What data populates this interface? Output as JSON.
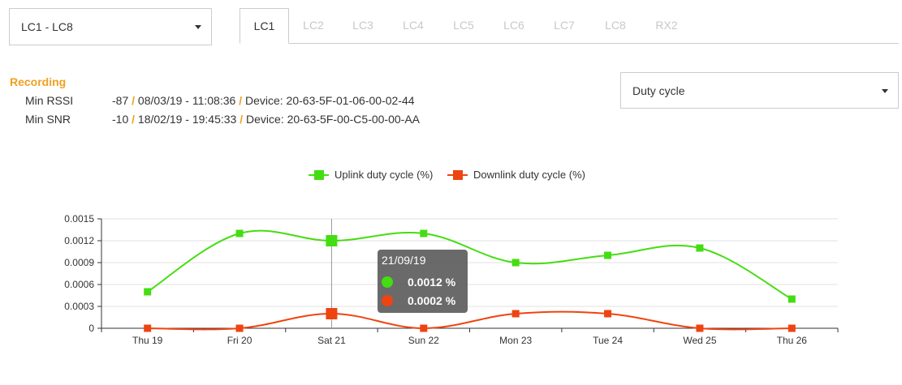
{
  "range_select": {
    "value": "LC1 - LC8"
  },
  "tabs": [
    "LC1",
    "LC2",
    "LC3",
    "LC4",
    "LC5",
    "LC6",
    "LC7",
    "LC8",
    "RX2"
  ],
  "active_tab": "LC1",
  "recording": {
    "title": "Recording",
    "min_rssi": {
      "label": "Min RSSI",
      "value": "-87",
      "datetime": "08/03/19 - 11:08:36",
      "device": "Device: 20-63-5F-01-06-00-02-44"
    },
    "min_snr": {
      "label": "Min SNR",
      "value": "-10",
      "datetime": "18/02/19 - 19:45:33",
      "device": "Device: 20-63-5F-00-C5-00-00-AA"
    },
    "separator": "/"
  },
  "metric_select": {
    "value": "Duty cycle"
  },
  "colors": {
    "uplink": "#44dd11",
    "downlink": "#ee4411",
    "accent": "#f0a020"
  },
  "chart_data": {
    "type": "line",
    "categories": [
      "Thu 19",
      "Fri 20",
      "Sat 21",
      "Sun 22",
      "Mon 23",
      "Tue 24",
      "Wed 25",
      "Thu 26"
    ],
    "series": [
      {
        "name": "Uplink duty cycle (%)",
        "values": [
          0.0005,
          0.0013,
          0.0012,
          0.0013,
          0.0009,
          0.001,
          0.0011,
          0.0004
        ]
      },
      {
        "name": "Downlink duty cycle (%)",
        "values": [
          0,
          0,
          0.0002,
          0,
          0.0002,
          0.0002,
          0,
          0
        ]
      }
    ],
    "yticks": [
      "0",
      "0.0003",
      "0.0006",
      "0.0009",
      "0.0012",
      "0.0015"
    ],
    "ylim": [
      0,
      0.0015
    ],
    "grid": true,
    "legend": "top-center",
    "tooltip": {
      "title": "21/09/19",
      "uplink": "0.0012 %",
      "downlink": "0.0002 %",
      "category": "Sat 21"
    }
  }
}
